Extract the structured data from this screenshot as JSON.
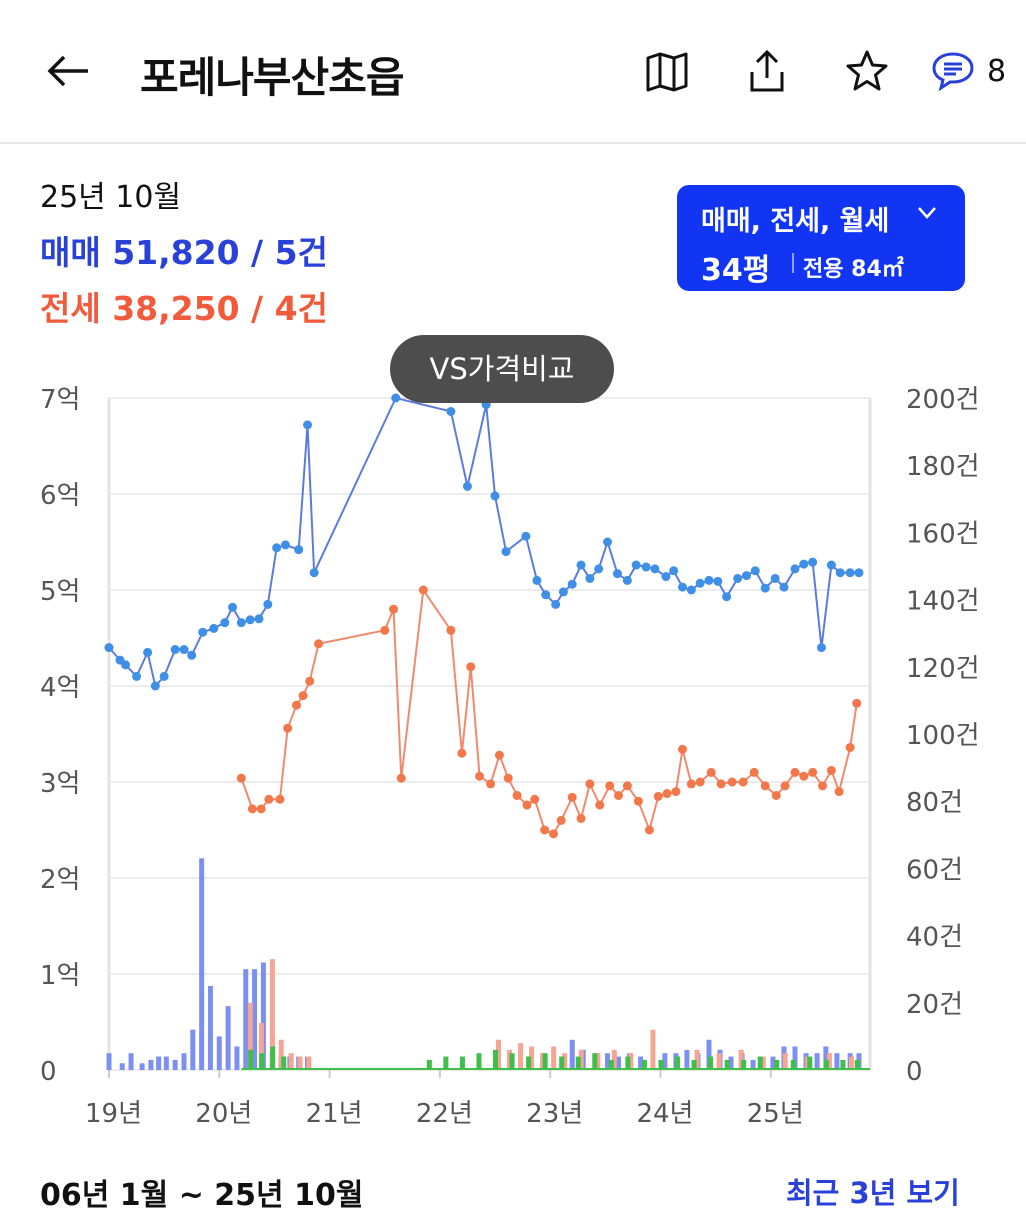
{
  "header": {
    "title": "포레나부산초읍",
    "comment_count": "8",
    "icons": [
      "back-arrow-icon",
      "map-icon",
      "share-icon",
      "star-icon",
      "comment-icon"
    ]
  },
  "summary": {
    "period": "25년 10월",
    "sale": "매매 51,820 / 5건",
    "jeonse": "전세 38,250 / 4건"
  },
  "filter": {
    "types": "매매, 전세, 월세",
    "pyeong": "34평",
    "area": "전용 84㎡"
  },
  "vs_button": "VS가격비교",
  "colors": {
    "sale": "#2a41d8",
    "jeonse": "#f15a3a",
    "sale_line": "#5b7be0",
    "jeonse_line": "#f08a6e",
    "filter_bg": "#1235f3"
  },
  "chart_data": {
    "type": "line",
    "x_tick_labels": [
      "19년",
      "20년",
      "21년",
      "22년",
      "23년",
      "24년",
      "25년"
    ],
    "y_left_ticks": [
      "0",
      "1억",
      "2억",
      "3억",
      "4억",
      "5억",
      "6억",
      "7억"
    ],
    "y_right_ticks": [
      "0",
      "20건",
      "40건",
      "60건",
      "80건",
      "100건",
      "120건",
      "140건",
      "160건",
      "180건",
      "200건"
    ],
    "y_left_lim": [
      0,
      7
    ],
    "y_right_lim": [
      0,
      200
    ],
    "x_lim": [
      2019.0,
      2025.9
    ],
    "series": [
      {
        "kind": "line",
        "color": "#5b7be0",
        "x": [
          2019.0,
          2019.1,
          2019.15,
          2019.25,
          2019.35,
          2019.42,
          2019.5,
          2019.6,
          2019.68,
          2019.75,
          2019.85,
          2019.95,
          2020.05,
          2020.12,
          2020.2,
          2020.28,
          2020.36,
          2020.44,
          2020.52,
          2020.6,
          2020.72,
          2020.8,
          2020.86,
          2021.6,
          2022.1,
          2022.25,
          2022.42,
          2022.5,
          2022.6,
          2022.78,
          2022.88,
          2022.96,
          2023.05,
          2023.12,
          2023.2,
          2023.28,
          2023.36,
          2023.44,
          2023.52,
          2023.61,
          2023.7,
          2023.78,
          2023.87,
          2023.95,
          2024.05,
          2024.12,
          2024.2,
          2024.28,
          2024.36,
          2024.44,
          2024.52,
          2024.6,
          2024.7,
          2024.78,
          2024.86,
          2024.95,
          2025.04,
          2025.12,
          2025.22,
          2025.3,
          2025.38,
          2025.46,
          2025.55,
          2025.63,
          2025.72,
          2025.8
        ],
        "y": [
          4.4,
          4.27,
          4.22,
          4.1,
          4.35,
          4.0,
          4.1,
          4.38,
          4.38,
          4.32,
          4.56,
          4.6,
          4.66,
          4.82,
          4.66,
          4.69,
          4.7,
          4.85,
          5.44,
          5.47,
          5.42,
          6.72,
          5.18,
          7.0,
          6.86,
          6.08,
          6.93,
          5.98,
          5.4,
          5.56,
          5.1,
          4.95,
          4.85,
          4.98,
          5.06,
          5.26,
          5.12,
          5.22,
          5.5,
          5.17,
          5.1,
          5.26,
          5.24,
          5.22,
          5.14,
          5.2,
          5.03,
          5.0,
          5.07,
          5.1,
          5.09,
          4.93,
          5.12,
          5.15,
          5.2,
          5.02,
          5.12,
          5.03,
          5.22,
          5.27,
          5.29,
          4.4,
          5.26,
          5.18,
          5.18,
          5.18
        ]
      },
      {
        "kind": "line",
        "color": "#f08a6e",
        "x": [
          2020.2,
          2020.3,
          2020.38,
          2020.45,
          2020.55,
          2020.62,
          2020.7,
          2020.76,
          2020.82,
          2020.9,
          2021.5,
          2021.58,
          2021.65,
          2021.85,
          2022.1,
          2022.2,
          2022.28,
          2022.36,
          2022.46,
          2022.54,
          2022.62,
          2022.7,
          2022.79,
          2022.86,
          2022.95,
          2023.03,
          2023.1,
          2023.2,
          2023.28,
          2023.36,
          2023.45,
          2023.54,
          2023.62,
          2023.7,
          2023.8,
          2023.9,
          2023.98,
          2024.06,
          2024.14,
          2024.2,
          2024.28,
          2024.36,
          2024.46,
          2024.55,
          2024.65,
          2024.75,
          2024.85,
          2024.95,
          2025.05,
          2025.13,
          2025.22,
          2025.3,
          2025.38,
          2025.47,
          2025.55,
          2025.62,
          2025.72,
          2025.78
        ],
        "y": [
          3.04,
          2.72,
          2.72,
          2.82,
          2.82,
          3.56,
          3.8,
          3.9,
          4.05,
          4.44,
          4.58,
          4.8,
          3.04,
          5.0,
          4.58,
          3.3,
          4.2,
          3.06,
          2.98,
          3.28,
          3.04,
          2.86,
          2.76,
          2.82,
          2.5,
          2.46,
          2.6,
          2.84,
          2.62,
          2.98,
          2.76,
          2.96,
          2.86,
          2.96,
          2.8,
          2.5,
          2.85,
          2.88,
          2.9,
          3.34,
          2.98,
          3.0,
          3.1,
          2.98,
          3.0,
          3.0,
          3.1,
          2.96,
          2.86,
          2.96,
          3.1,
          3.06,
          3.1,
          2.96,
          3.12,
          2.9,
          3.36,
          3.82
        ]
      }
    ],
    "bars": {
      "sale_x": [
        2019.0,
        2019.12,
        2019.2,
        2019.3,
        2019.38,
        2019.45,
        2019.52,
        2019.6,
        2019.68,
        2019.76,
        2019.84,
        2019.92,
        2020.0,
        2020.08,
        2020.16,
        2020.24,
        2020.32,
        2020.4,
        2020.48,
        2020.56,
        2020.64,
        2020.72,
        2020.8,
        2023.2,
        2023.3,
        2023.42,
        2023.52,
        2023.62,
        2023.72,
        2023.82,
        2024.04,
        2024.14,
        2024.24,
        2024.34,
        2024.44,
        2024.54,
        2024.64,
        2024.74,
        2024.84,
        2025.02,
        2025.12,
        2025.22,
        2025.32,
        2025.42,
        2025.5,
        2025.6,
        2025.72,
        2025.8
      ],
      "sale_counts": [
        5,
        2,
        5,
        2,
        3,
        4,
        4,
        3,
        5,
        12,
        63,
        25,
        10,
        19,
        7,
        30,
        30,
        32,
        6,
        4,
        4,
        4,
        4,
        9,
        6,
        5,
        5,
        4,
        5,
        4,
        5,
        5,
        6,
        5,
        9,
        6,
        4,
        5,
        3,
        4,
        7,
        7,
        5,
        5,
        7,
        5,
        5,
        5
      ],
      "jeonse_x": [
        2020.25,
        2020.35,
        2020.45,
        2020.53,
        2020.62,
        2020.7,
        2020.78,
        2022.5,
        2022.6,
        2022.7,
        2022.8,
        2022.9,
        2023.0,
        2023.1,
        2023.25,
        2023.4,
        2023.55,
        2023.7,
        2023.9,
        2024.3,
        2024.5,
        2024.7,
        2024.9,
        2025.1,
        2025.3,
        2025.5,
        2025.7
      ],
      "jeonse_counts": [
        20,
        14,
        33,
        9,
        5,
        4,
        4,
        9,
        6,
        8,
        7,
        5,
        7,
        5,
        6,
        5,
        6,
        5,
        12,
        6,
        5,
        6,
        4,
        5,
        4,
        5,
        4
      ],
      "monthly_x": [
        2020.28,
        2020.38,
        2020.48,
        2020.58,
        2021.9,
        2022.05,
        2022.2,
        2022.35,
        2022.5,
        2022.65,
        2022.8,
        2022.95,
        2023.1,
        2023.25,
        2023.4,
        2023.55,
        2023.7,
        2023.85,
        2024.0,
        2024.15,
        2024.3,
        2024.45,
        2024.6,
        2024.75,
        2024.9,
        2025.05,
        2025.2,
        2025.35,
        2025.5,
        2025.65,
        2025.78
      ],
      "monthly_counts": [
        6,
        5,
        7,
        4,
        3,
        4,
        4,
        5,
        6,
        5,
        4,
        5,
        4,
        4,
        5,
        3,
        4,
        3,
        3,
        4,
        3,
        4,
        3,
        3,
        4,
        3,
        3,
        4,
        3,
        3,
        3
      ]
    }
  },
  "footer": {
    "range": "06년 1월 ~ 25년 10월",
    "link": "최근 3년 보기"
  }
}
